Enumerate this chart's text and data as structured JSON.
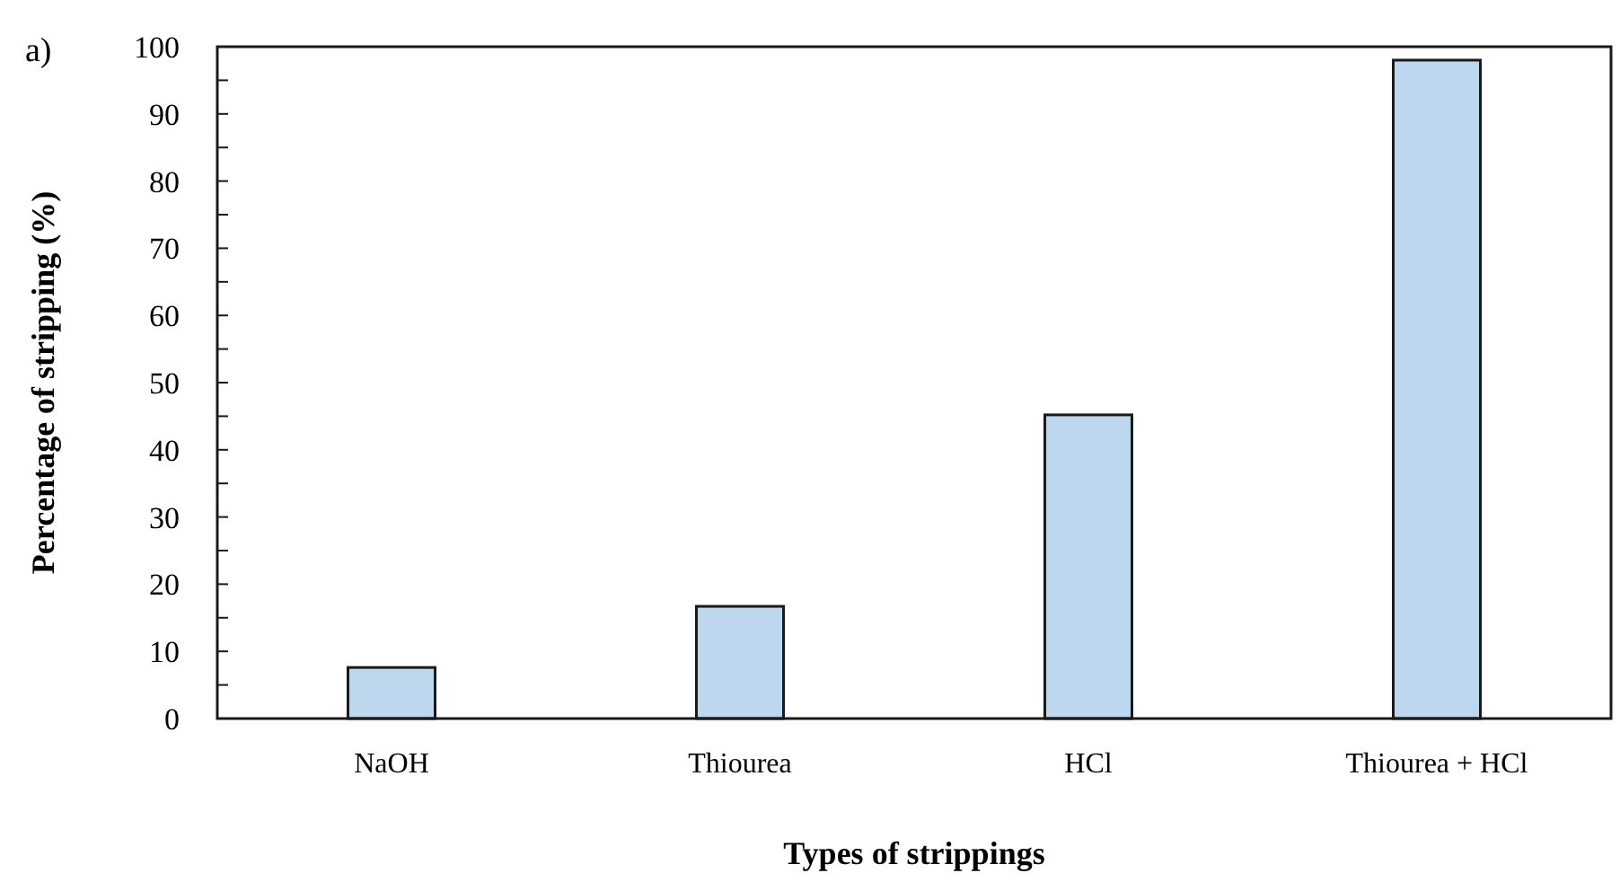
{
  "chart_data": {
    "type": "bar",
    "xlabel": "Types of strippings",
    "ylabel": "Percentage of stripping (%)",
    "annotations": [
      "a)"
    ],
    "categories": [
      "NaOH",
      "Thiourea",
      "HCl",
      "Thiourea + HCl"
    ],
    "values": [
      7.6,
      16.7,
      45.2,
      98.0
    ],
    "color": "#bdd7ee",
    "ylim": [
      0,
      100
    ],
    "yticks": [
      0,
      {
        "value": 5,
        "label": null
      },
      10,
      {
        "value": 15,
        "label": null
      },
      20,
      {
        "value": 25,
        "label": null
      },
      30,
      {
        "value": 35,
        "label": null
      },
      40,
      {
        "value": 45,
        "label": null
      },
      50,
      {
        "value": 55,
        "label": null
      },
      60,
      {
        "value": 65,
        "label": null
      },
      70,
      {
        "value": 75,
        "label": null
      },
      80,
      {
        "value": 85,
        "label": null
      },
      90,
      {
        "value": 95,
        "label": null
      },
      100
    ],
    "grid": false
  }
}
